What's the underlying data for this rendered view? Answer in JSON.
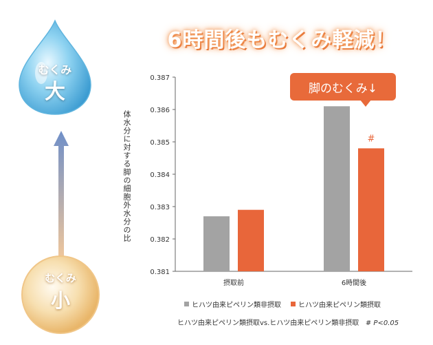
{
  "headline": "6時間後もむくみ軽減！",
  "scale": {
    "top": {
      "small": "むくみ",
      "big": "大"
    },
    "bottom": {
      "small": "むくみ",
      "big": "小"
    }
  },
  "callout": "脚のむくみ↓",
  "footnote": {
    "text": "ヒハツ由来ピペリン類摂取vs.ヒハツ由来ピペリン類非摂取",
    "sig": "# P<0.05"
  },
  "colors": {
    "gray": "#a3a3a3",
    "orange": "#e8663a",
    "accent": "#e86a3a"
  },
  "chart_data": {
    "type": "bar",
    "ylabel": "体水分に対する脚の細胞外水分の比",
    "categories": [
      "摂取前",
      "6時間後"
    ],
    "ylim": [
      0.381,
      0.387
    ],
    "yticks": [
      "0.381",
      "0.382",
      "0.383",
      "0.384",
      "0.385",
      "0.386",
      "0.387"
    ],
    "series": [
      {
        "name": "ヒハツ由来ピペリン類非摂取",
        "values": [
          0.3827,
          0.3861
        ],
        "color": "#a3a3a3"
      },
      {
        "name": "ヒハツ由来ピペリン類摂取",
        "values": [
          0.3829,
          0.3848
        ],
        "color": "#e8663a"
      }
    ],
    "annotations": [
      {
        "category": "6時間後",
        "series": 1,
        "text": "#"
      }
    ],
    "grid": false,
    "legend": "bottom"
  }
}
